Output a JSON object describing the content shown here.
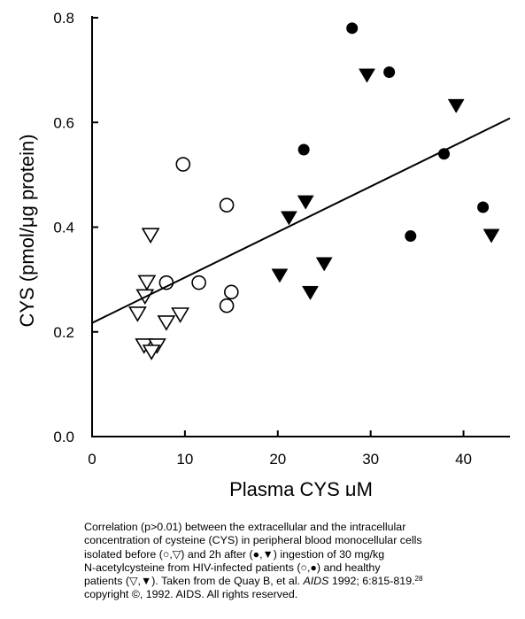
{
  "chart_data": {
    "type": "scatter",
    "xlabel": "Plasma CYS μM",
    "ylabel": "CYS (pmol/μg protein)",
    "xlim": [
      0,
      45
    ],
    "ylim": [
      0,
      0.8
    ],
    "x_ticks": [
      "0",
      "10",
      "20",
      "30",
      "40"
    ],
    "y_ticks": [
      "0.0",
      "0.2",
      "0.4",
      "0.6",
      "0.8"
    ],
    "grid": false,
    "series": [
      {
        "marker": "open-circle",
        "points": [
          [
            9.8,
            0.52
          ],
          [
            14.5,
            0.442
          ],
          [
            8.0,
            0.294
          ],
          [
            11.5,
            0.294
          ],
          [
            15.0,
            0.276
          ],
          [
            14.5,
            0.25
          ]
        ]
      },
      {
        "marker": "open-triangle-down",
        "points": [
          [
            6.3,
            0.385
          ],
          [
            5.9,
            0.295
          ],
          [
            5.7,
            0.268
          ],
          [
            4.9,
            0.235
          ],
          [
            8.0,
            0.218
          ],
          [
            9.5,
            0.233
          ],
          [
            5.6,
            0.174
          ],
          [
            7.0,
            0.174
          ],
          [
            6.4,
            0.162
          ]
        ]
      },
      {
        "marker": "filled-circle",
        "points": [
          [
            28.0,
            0.78
          ],
          [
            32.0,
            0.696
          ],
          [
            22.8,
            0.548
          ],
          [
            37.9,
            0.54
          ],
          [
            42.1,
            0.438
          ],
          [
            34.3,
            0.383
          ]
        ]
      },
      {
        "marker": "filled-triangle-down",
        "points": [
          [
            29.6,
            0.69
          ],
          [
            39.2,
            0.632
          ],
          [
            23.0,
            0.448
          ],
          [
            21.2,
            0.418
          ],
          [
            43.0,
            0.384
          ],
          [
            25.0,
            0.33
          ],
          [
            20.2,
            0.308
          ],
          [
            23.5,
            0.275
          ]
        ]
      }
    ],
    "regression_line": {
      "x": [
        0,
        45
      ],
      "y": [
        0.217,
        0.608
      ]
    }
  },
  "caption": {
    "lines": [
      "Correlation (p>0.01) between the extracellular and the intracellular",
      "concentration of cysteine (CYS) in peripheral blood monocellular cells",
      "isolated before (○,▽) and 2h after (●,▼) ingestion of 30 mg/kg",
      "N-acetylcysteine from HIV-infected patients (○,●) and healthy"
    ],
    "line5_before": "patients (▽,▼).  Taken from de Quay B, et al.  ",
    "journal": "AIDS",
    "line5_after": " 1992; 6:815-819.",
    "reference": "28",
    "line6": "copyright ©, 1992.  AIDS.  All rights reserved."
  }
}
